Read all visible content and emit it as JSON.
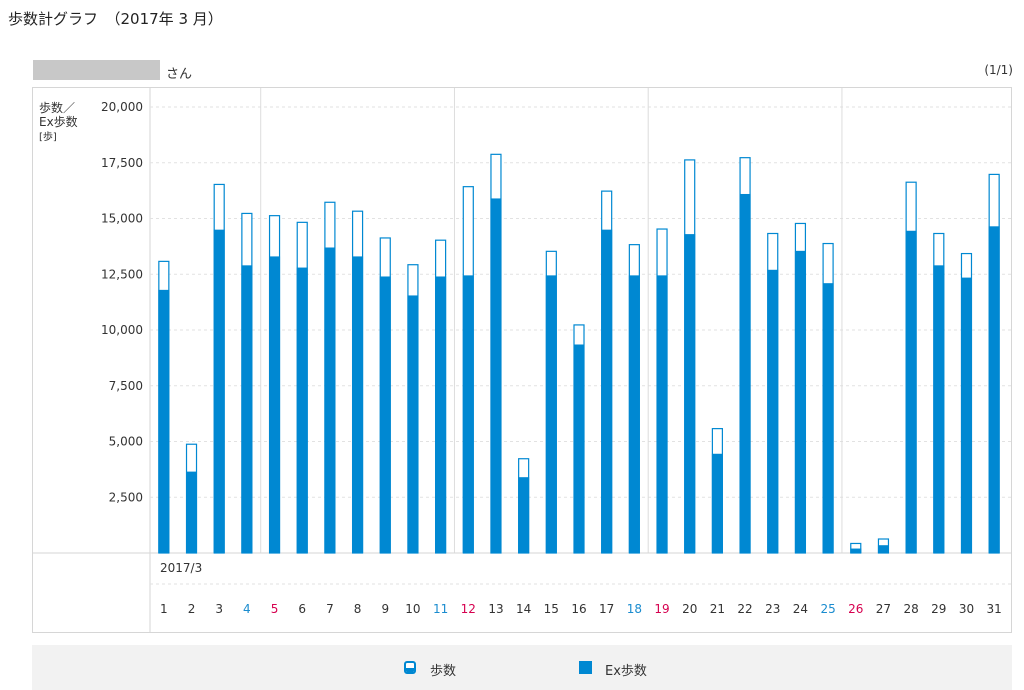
{
  "page": {
    "title": "歩数計グラフ　（2017年 3 月）"
  },
  "user": {
    "suffix": "さん",
    "page_indicator": "(1/1)"
  },
  "colors": {
    "bar": "#0088d2",
    "sunday": "#d6004f",
    "saturday": "#1a8ccf",
    "weekday": "#333333",
    "grid": "#dcdcdc"
  },
  "chart_data": {
    "type": "bar",
    "ylabel": "歩数／\nEx歩数\n[歩]",
    "ylim": [
      0,
      20000
    ],
    "yticks": [
      "2,500",
      "5,000",
      "7,500",
      "10,000",
      "12,500",
      "15,000",
      "17,500",
      "20,000"
    ],
    "month_label": "2017/3",
    "categories": [
      "1",
      "2",
      "3",
      "4",
      "5",
      "6",
      "7",
      "8",
      "9",
      "10",
      "11",
      "12",
      "13",
      "14",
      "15",
      "16",
      "17",
      "18",
      "19",
      "20",
      "21",
      "22",
      "23",
      "24",
      "25",
      "26",
      "27",
      "28",
      "29",
      "30",
      "31"
    ],
    "day_types": [
      "weekday",
      "weekday",
      "weekday",
      "saturday",
      "sunday",
      "weekday",
      "weekday",
      "weekday",
      "weekday",
      "weekday",
      "saturday",
      "sunday",
      "weekday",
      "weekday",
      "weekday",
      "weekday",
      "weekday",
      "saturday",
      "sunday",
      "weekday",
      "weekday",
      "weekday",
      "weekday",
      "weekday",
      "saturday",
      "sunday",
      "weekday",
      "weekday",
      "weekday",
      "weekday",
      "weekday"
    ],
    "series": [
      {
        "name": "歩数",
        "style": "outline",
        "values": [
          13100,
          4900,
          16550,
          15250,
          15150,
          14850,
          15750,
          15350,
          14150,
          12950,
          14050,
          16450,
          17900,
          4250,
          13550,
          10250,
          16250,
          13850,
          14550,
          17650,
          5600,
          17750,
          14350,
          14800,
          13900,
          450,
          650,
          16650,
          14350,
          13450,
          17000
        ]
      },
      {
        "name": "Ex歩数",
        "style": "solid",
        "values": [
          11800,
          3650,
          14500,
          12900,
          13300,
          12800,
          13700,
          13300,
          12400,
          11550,
          12400,
          12450,
          15900,
          3400,
          12450,
          9350,
          14500,
          12450,
          12450,
          14300,
          4450,
          16100,
          12700,
          13550,
          12100,
          200,
          350,
          14450,
          12900,
          12350,
          14650
        ]
      }
    ],
    "week_separators_after": [
      "4",
      "11",
      "18",
      "25"
    ],
    "grid": true,
    "legend_position": "bottom-center"
  },
  "legend": {
    "steps_label": "歩数",
    "ex_label": "Ex歩数"
  }
}
